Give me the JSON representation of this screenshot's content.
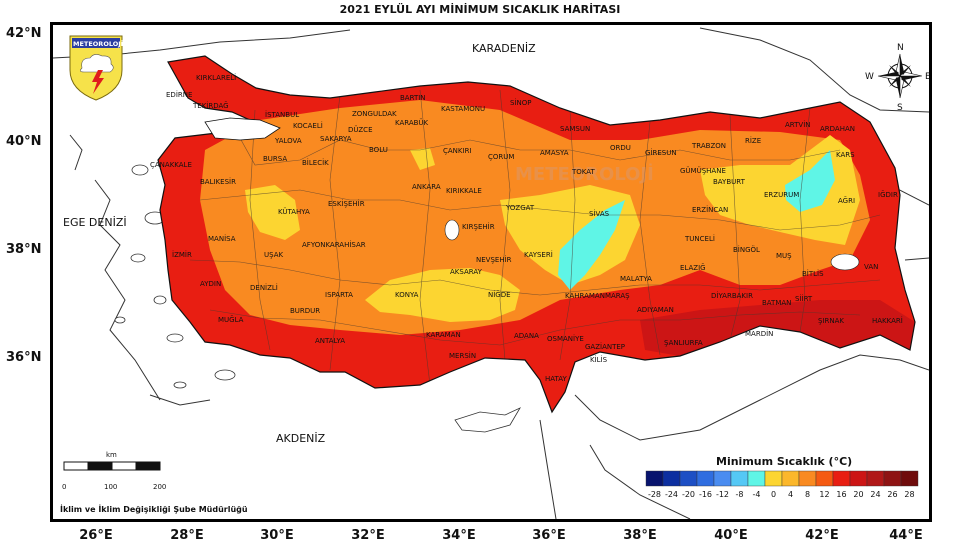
{
  "title": "2021 EYLÜL AYI MİNİMUM SICAKLIK HARİTASI",
  "lat_labels": [
    "42°N",
    "40°N",
    "38°N",
    "36°N"
  ],
  "lon_labels": [
    "26°E",
    "28°E",
    "30°E",
    "32°E",
    "34°E",
    "36°E",
    "38°E",
    "40°E",
    "42°E",
    "44°E"
  ],
  "logo_text": "METEOROLOJİ",
  "watermark": "METEOROLOJİ",
  "seas": {
    "black_sea": "KARADENİZ",
    "aegean": "EGE DENİZİ",
    "mediterranean": "AKDENİZ"
  },
  "compass": {
    "n": "N",
    "s": "S",
    "e": "E",
    "w": "W"
  },
  "scale_bar": {
    "unit": "km",
    "labels": [
      "0",
      "100",
      "200"
    ]
  },
  "footer": "İklim ve İklim Değişikliği Şube Müdürlüğü",
  "legend": {
    "title": "Minimum Sıcaklık (°C)",
    "ticks": [
      "-28",
      "-24",
      "-20",
      "-16",
      "-12",
      "-8",
      "-4",
      "0",
      "4",
      "8",
      "12",
      "16",
      "20",
      "24",
      "26",
      "28"
    ],
    "colors": [
      "#08146e",
      "#0d2fa0",
      "#1d4fc4",
      "#2f6de0",
      "#4a8cf0",
      "#55c8f5",
      "#5ff5e6",
      "#fcd531",
      "#fbb72b",
      "#f98a21",
      "#f55a12",
      "#e81e12",
      "#cc1515",
      "#b01818",
      "#8e1313",
      "#6f0c0c"
    ]
  },
  "cities": [
    {
      "name": "KIRKLARELİ"
    },
    {
      "name": "EDİRNE"
    },
    {
      "name": "TEKİRDAĞ"
    },
    {
      "name": "İSTANBUL"
    },
    {
      "name": "KOCAELİ"
    },
    {
      "name": "SAKARYA"
    },
    {
      "name": "DÜZCE"
    },
    {
      "name": "ZONGULDAK"
    },
    {
      "name": "BARTIN"
    },
    {
      "name": "KARABÜK"
    },
    {
      "name": "KASTAMONU"
    },
    {
      "name": "SİNOP"
    },
    {
      "name": "SAMSUN"
    },
    {
      "name": "ORDU"
    },
    {
      "name": "GİRESUN"
    },
    {
      "name": "TRABZON"
    },
    {
      "name": "RİZE"
    },
    {
      "name": "ARTVİN"
    },
    {
      "name": "ARDAHAN"
    },
    {
      "name": "KARS"
    },
    {
      "name": "IĞDIR"
    },
    {
      "name": "AĞRI"
    },
    {
      "name": "ERZURUM"
    },
    {
      "name": "BAYBURT"
    },
    {
      "name": "GÜMÜŞHANE"
    },
    {
      "name": "ERZİNCAN"
    },
    {
      "name": "TUNCELİ"
    },
    {
      "name": "BİNGÖL"
    },
    {
      "name": "MUŞ"
    },
    {
      "name": "BİTLİS"
    },
    {
      "name": "VAN"
    },
    {
      "name": "HAKKARİ"
    },
    {
      "name": "ŞIRNAK"
    },
    {
      "name": "SİİRT"
    },
    {
      "name": "BATMAN"
    },
    {
      "name": "MARDİN"
    },
    {
      "name": "DİYARBAKIR"
    },
    {
      "name": "ŞANLIURFA"
    },
    {
      "name": "ADIYAMAN"
    },
    {
      "name": "MALATYA"
    },
    {
      "name": "ELAZIĞ"
    },
    {
      "name": "GAZİANTEP"
    },
    {
      "name": "OSMANİYE"
    },
    {
      "name": "KAHRAMANMARAŞ"
    },
    {
      "name": "ADANA"
    },
    {
      "name": "HATAY"
    },
    {
      "name": "MERSİN"
    },
    {
      "name": "KARAMAN"
    },
    {
      "name": "KONYA"
    },
    {
      "name": "NİĞDE"
    },
    {
      "name": "AKSARAY"
    },
    {
      "name": "NEVŞEHİR"
    },
    {
      "name": "KAYSERİ"
    },
    {
      "name": "SİVAS"
    },
    {
      "name": "TOKAT"
    },
    {
      "name": "AMASYA"
    },
    {
      "name": "ÇORUM"
    },
    {
      "name": "YOZGAT"
    },
    {
      "name": "KIRŞEHİR"
    },
    {
      "name": "KIRIKKALE"
    },
    {
      "name": "ANKARA"
    },
    {
      "name": "ÇANKIRI"
    },
    {
      "name": "BOLU"
    },
    {
      "name": "BİLECİK"
    },
    {
      "name": "ESKİŞEHİR"
    },
    {
      "name": "KÜTAHYA"
    },
    {
      "name": "AFYONKARAHİSAR"
    },
    {
      "name": "UŞAK"
    },
    {
      "name": "DENİZLİ"
    },
    {
      "name": "ISPARTA"
    },
    {
      "name": "BURDUR"
    },
    {
      "name": "ANTALYA"
    },
    {
      "name": "MUĞLA"
    },
    {
      "name": "AYDIN"
    },
    {
      "name": "İZMİR"
    },
    {
      "name": "MANİSA"
    },
    {
      "name": "BALIKESİR"
    },
    {
      "name": "ÇANAKKALE"
    },
    {
      "name": "BURSA"
    },
    {
      "name": "YALOVA"
    },
    {
      "name": "KİLİS"
    }
  ]
}
